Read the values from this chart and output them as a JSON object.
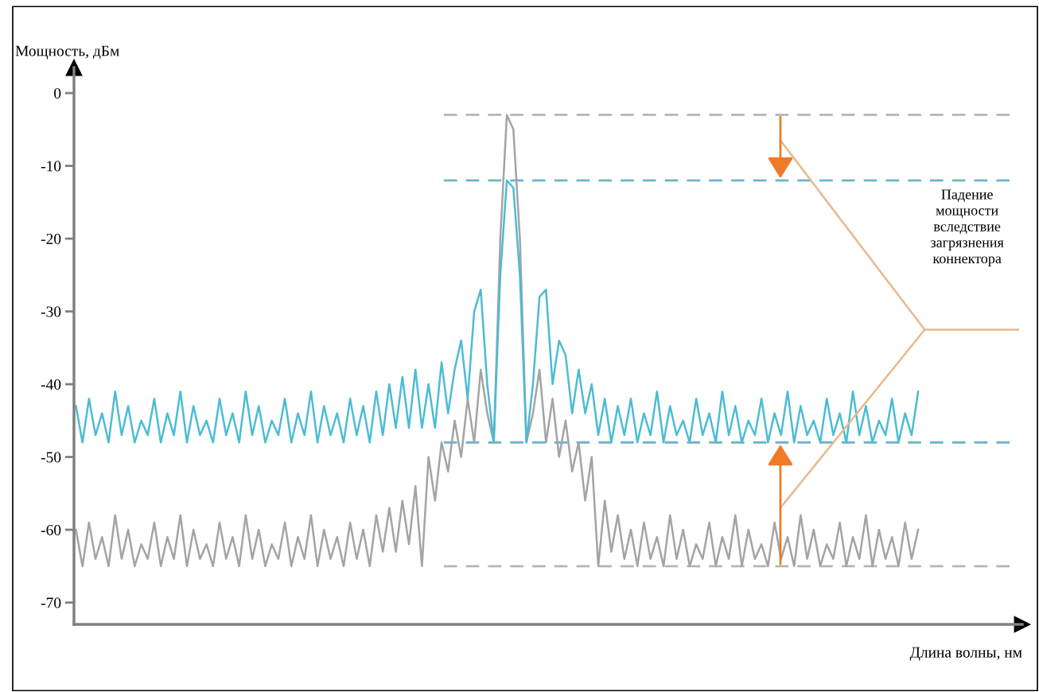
{
  "chart_data": {
    "type": "line",
    "ylabel": "Мощность, дБм",
    "xlabel": "Длина волны, нм",
    "annotations": [
      "Падение\nмощности\nвследствие\nзагрязнения\nконнектора"
    ],
    "categories": [
      null,
      null,
      null,
      null,
      null,
      null,
      null,
      null,
      null,
      null,
      null,
      null,
      null,
      null,
      null,
      null,
      null,
      null,
      null,
      null,
      null,
      null,
      null,
      null,
      null,
      null,
      null,
      null,
      null,
      null,
      null,
      null,
      null,
      null,
      null,
      null,
      null,
      null,
      null,
      null,
      null,
      null,
      null,
      null,
      null,
      null,
      null,
      null,
      null,
      null,
      null,
      null,
      null,
      null,
      null,
      null,
      null,
      null,
      null,
      null,
      null,
      null,
      null,
      null,
      null,
      null,
      null,
      null,
      null,
      null,
      null,
      null,
      null,
      null,
      null,
      null,
      null,
      null,
      null,
      null,
      null,
      null,
      null,
      null,
      null,
      null,
      null,
      null,
      null,
      null,
      null,
      null,
      null,
      null,
      null,
      null,
      null,
      null,
      null,
      null,
      null,
      null,
      null,
      null,
      null,
      null,
      null,
      null,
      null,
      null,
      null,
      null,
      null,
      null,
      null,
      null,
      null,
      null,
      null,
      null,
      null,
      null,
      null,
      null,
      null,
      null,
      null,
      null,
      null,
      null
    ],
    "series": [
      {
        "color": "#a3a3a8",
        "values": [
          -60,
          -65,
          -59,
          -64,
          -61,
          -65,
          -58,
          -64,
          -60,
          -65,
          -62,
          -64,
          -59,
          -65,
          -61,
          -64,
          -58,
          -65,
          -60,
          -64,
          -62,
          -65,
          -59,
          -64,
          -61,
          -65,
          -58,
          -64,
          -60,
          -65,
          -62,
          -64,
          -59,
          -65,
          -61,
          -64,
          -58,
          -65,
          -60,
          -64,
          -61,
          -65,
          -59,
          -64,
          -60,
          -65,
          -58,
          -63,
          -57,
          -63,
          -56,
          -62,
          -54,
          -65,
          -50,
          -56,
          -48,
          -52,
          -45,
          -50,
          -42,
          -48,
          -38,
          -44,
          -48,
          -20,
          -3,
          -5,
          -20,
          -48,
          -44,
          -38,
          -48,
          -42,
          -50,
          -45,
          -52,
          -48,
          -56,
          -50,
          -65,
          -56,
          -63,
          -58,
          -64,
          -60,
          -65,
          -59,
          -64,
          -61,
          -65,
          -58,
          -64,
          -60,
          -65,
          -62,
          -64,
          -59,
          -65,
          -61,
          -64,
          -58,
          -65,
          -60,
          -64,
          -62,
          -65,
          -59,
          -64,
          -61,
          -65,
          -58,
          -64,
          -60,
          -65,
          -62,
          -64,
          -59,
          -65,
          -61,
          -64,
          -58,
          -65,
          -60,
          -64,
          -61,
          -65,
          -59,
          -64,
          -60
        ]
      },
      {
        "color": "#4cbcd4",
        "values": [
          -43,
          -48,
          -42,
          -47,
          -44,
          -48,
          -41,
          -47,
          -43,
          -48,
          -45,
          -47,
          -42,
          -48,
          -44,
          -47,
          -41,
          -48,
          -43,
          -47,
          -45,
          -48,
          -42,
          -47,
          -44,
          -48,
          -41,
          -47,
          -43,
          -48,
          -45,
          -47,
          -42,
          -48,
          -44,
          -47,
          -41,
          -48,
          -43,
          -47,
          -44,
          -48,
          -42,
          -47,
          -43,
          -48,
          -41,
          -47,
          -40,
          -46,
          -39,
          -46,
          -38,
          -46,
          -40,
          -46,
          -37,
          -44,
          -38,
          -34,
          -42,
          -30,
          -27,
          -40,
          -48,
          -25,
          -12,
          -13,
          -25,
          -48,
          -40,
          -28,
          -27,
          -40,
          -34,
          -36,
          -44,
          -38,
          -44,
          -40,
          -47,
          -42,
          -48,
          -43,
          -47,
          -42,
          -48,
          -44,
          -47,
          -41,
          -48,
          -43,
          -47,
          -45,
          -48,
          -42,
          -47,
          -44,
          -48,
          -41,
          -47,
          -43,
          -48,
          -45,
          -47,
          -42,
          -48,
          -44,
          -47,
          -41,
          -48,
          -43,
          -47,
          -45,
          -48,
          -42,
          -47,
          -44,
          -48,
          -41,
          -47,
          -43,
          -48,
          -45,
          -47,
          -42,
          -48,
          -44,
          -47,
          -41
        ]
      }
    ],
    "ylim": [
      -73,
      3.5
    ],
    "yticks": [
      0,
      -10,
      -20,
      -30,
      -40,
      -50,
      -60,
      -70
    ],
    "tick_labels": "y",
    "ref_lines": [
      {
        "axis": "y",
        "value": -3,
        "color": "#b5b5b5",
        "line_style": "dashed"
      },
      {
        "axis": "y",
        "value": -12,
        "color": "#6cb4cc",
        "line_style": "dashed"
      },
      {
        "axis": "y",
        "value": -48,
        "color": "#6cb4cc",
        "line_style": "dashed"
      },
      {
        "axis": "y",
        "value": -65,
        "color": "#b5b5b5",
        "line_style": "dashed"
      }
    ],
    "grid": false,
    "marker": "none",
    "line_style": "solid"
  }
}
